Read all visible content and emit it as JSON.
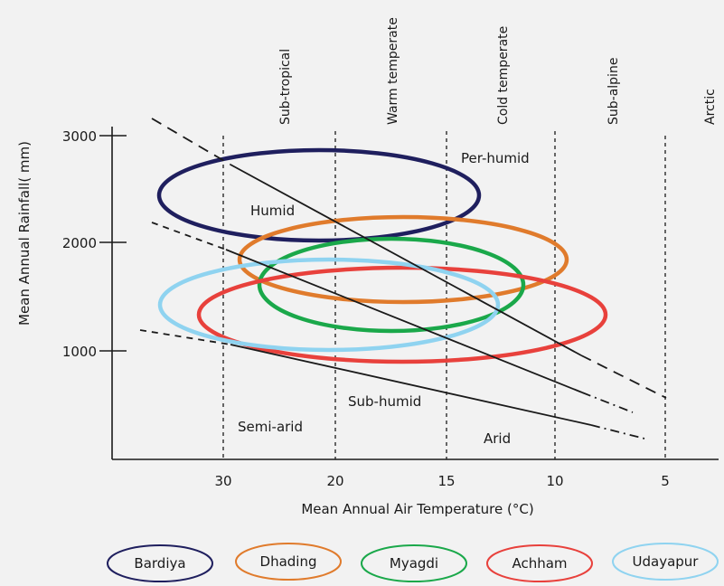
{
  "diagram": {
    "y_axis": {
      "label": "Mean Annual Rainfall( mm)",
      "ticks": [
        "3000",
        "2000",
        "1000"
      ]
    },
    "x_axis": {
      "label": "Mean Annual Air Temperature (°C)",
      "ticks": [
        "30",
        "20",
        "15",
        "10",
        "5"
      ]
    },
    "zones": [
      "Sub-tropical",
      "Warm temperate",
      "Cold temperate",
      "Sub-alpine",
      "Arctic"
    ],
    "regions": [
      "Per-humid",
      "Humid",
      "Sub-humid",
      "Semi-arid",
      "Arid"
    ],
    "districts": [
      {
        "name": "Bardiya",
        "color": "#1f1f5e"
      },
      {
        "name": "Dhading",
        "color": "#e07b2c"
      },
      {
        "name": "Myagdi",
        "color": "#1aa84a"
      },
      {
        "name": "Achham",
        "color": "#e8413c"
      },
      {
        "name": "Udayapur",
        "color": "#8fd3f0"
      }
    ]
  }
}
